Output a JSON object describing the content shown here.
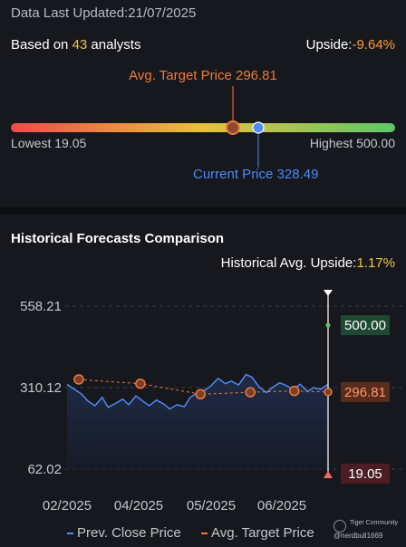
{
  "header": {
    "updated_label": "Data Last Updated:",
    "updated_date": "21/07/2025",
    "based_on_prefix": "Based on ",
    "analyst_count": "43",
    "based_on_suffix": " analysts",
    "upside_label": "Upside:",
    "upside_value": "-9.64%"
  },
  "range": {
    "avg_target_label": "Avg. Target Price 296.81",
    "lowest_label": "Lowest 19.05",
    "highest_label": "Highest 500.00",
    "current_label": "Current Price 328.49",
    "low": 19.05,
    "high": 500.0,
    "avg_target": 296.81,
    "current": 328.49,
    "colors": {
      "gradient_start": "#f04a4a",
      "gradient_mid": "#e8c23a",
      "gradient_end": "#5cc86a",
      "target": "#ef7a3a",
      "current": "#4f8af5"
    }
  },
  "history": {
    "title": "Historical Forecasts Comparison",
    "avg_upside_label": "Historical Avg. Upside:",
    "avg_upside_value": "1.17%"
  },
  "chart_data": {
    "type": "line",
    "y_ticks": [
      "558.21",
      "310.12",
      "62.02"
    ],
    "ylim": [
      62.02,
      558.21
    ],
    "x_tick_labels": [
      "02/2025",
      "04/2025",
      "05/2025",
      "06/2025"
    ],
    "x_range": [
      "2025-01-24",
      "2025-07-21"
    ],
    "series": [
      {
        "name": "Prev. Close Price",
        "color": "#4f8af5",
        "x": [
          "2025-01-24",
          "2025-01-29",
          "2025-02-03",
          "2025-02-07",
          "2025-02-12",
          "2025-02-17",
          "2025-02-21",
          "2025-02-26",
          "2025-03-03",
          "2025-03-07",
          "2025-03-12",
          "2025-03-17",
          "2025-03-21",
          "2025-03-26",
          "2025-03-31",
          "2025-04-04",
          "2025-04-09",
          "2025-04-14",
          "2025-04-18",
          "2025-04-23",
          "2025-04-28",
          "2025-05-02",
          "2025-05-07",
          "2025-05-12",
          "2025-05-16",
          "2025-05-21",
          "2025-05-26",
          "2025-05-30",
          "2025-06-04",
          "2025-06-09",
          "2025-06-13",
          "2025-06-18",
          "2025-06-23",
          "2025-06-27",
          "2025-07-02",
          "2025-07-07",
          "2025-07-11",
          "2025-07-16",
          "2025-07-21"
        ],
        "values": [
          320,
          305,
          290,
          270,
          255,
          280,
          250,
          262,
          275,
          258,
          285,
          268,
          255,
          272,
          260,
          245,
          258,
          252,
          280,
          295,
          302,
          315,
          338,
          322,
          330,
          318,
          350,
          342,
          312,
          295,
          310,
          325,
          315,
          305,
          320,
          298,
          310,
          305,
          320
        ]
      },
      {
        "name": "Avg. Target Price",
        "color": "#ef7a3a",
        "x": [
          "2025-02-01",
          "2025-03-15",
          "2025-04-25",
          "2025-05-29",
          "2025-06-28",
          "2025-07-21"
        ],
        "values": [
          335,
          322,
          290,
          296,
          300,
          296.81
        ]
      }
    ],
    "current_marker": {
      "date": "2025-07-21",
      "price_high": 500.0,
      "price_avg": 296.81,
      "price_low": 19.05
    },
    "value_labels": {
      "high": "500.00",
      "avg": "296.81",
      "low": "19.05"
    },
    "legend": [
      {
        "label": "Prev. Close Price",
        "color": "#4f8af5"
      },
      {
        "label": "Avg. Target Price",
        "color": "#ef7a3a"
      }
    ],
    "grid": true,
    "legend_position": "bottom"
  },
  "watermark": {
    "brand": "Tiger Community",
    "user": "@nerdbull1669"
  }
}
